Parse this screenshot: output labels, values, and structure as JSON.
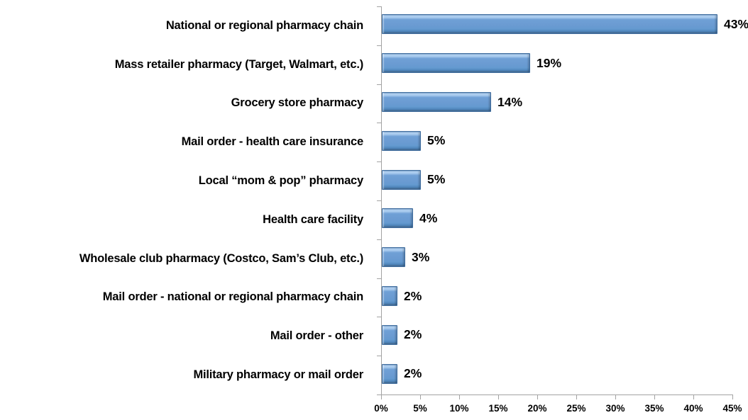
{
  "chart_data": {
    "type": "bar",
    "orientation": "horizontal",
    "title": "",
    "xlabel": "",
    "ylabel": "",
    "categories": [
      "National or regional pharmacy chain",
      "Mass retailer pharmacy (Target, Walmart, etc.)",
      "Grocery store pharmacy",
      "Mail order - health care insurance",
      "Local “mom & pop” pharmacy",
      "Health care facility",
      "Wholesale club pharmacy (Costco, Sam’s Club, etc.)",
      "Mail order - national or regional pharmacy chain",
      "Mail order - other",
      "Military pharmacy or mail order"
    ],
    "values": [
      43,
      19,
      14,
      5,
      5,
      4,
      3,
      2,
      2,
      2
    ],
    "value_labels": [
      "43%",
      "19%",
      "14%",
      "5%",
      "5%",
      "4%",
      "3%",
      "2%",
      "2%",
      "2%"
    ],
    "xlim": [
      0,
      45
    ],
    "x_tick_step": 5,
    "x_tick_labels": [
      "0%",
      "5%",
      "10%",
      "15%",
      "20%",
      "25%",
      "30%",
      "35%",
      "40%",
      "45%"
    ],
    "grid": "off",
    "legend": "none",
    "colors": {
      "bar_fill": "#6B9BD2",
      "bar_highlight": "#AECFF0",
      "bar_shadow": "#3A6490",
      "bar_border": "#3E6C9E",
      "axis_line": "#A3A3A3",
      "text": "#000000"
    }
  }
}
